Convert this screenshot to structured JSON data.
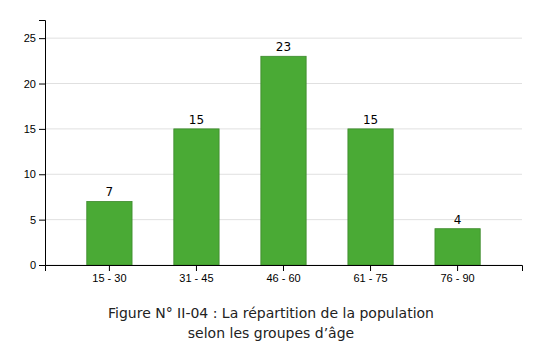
{
  "chart_data": {
    "type": "bar",
    "title": "Figure N° II-04 : La répartition de la population\nselon les groupes d’âge",
    "categories": [
      "15 - 30",
      "31 - 45",
      "46 - 60",
      "61 - 75",
      "76 - 90"
    ],
    "values": [
      7,
      15,
      23,
      15,
      4
    ],
    "color": "#4aaa35",
    "ylim": [
      0,
      27
    ],
    "yticks": [
      0,
      5,
      10,
      15,
      20,
      25
    ],
    "grid": true,
    "data_labels": true
  }
}
